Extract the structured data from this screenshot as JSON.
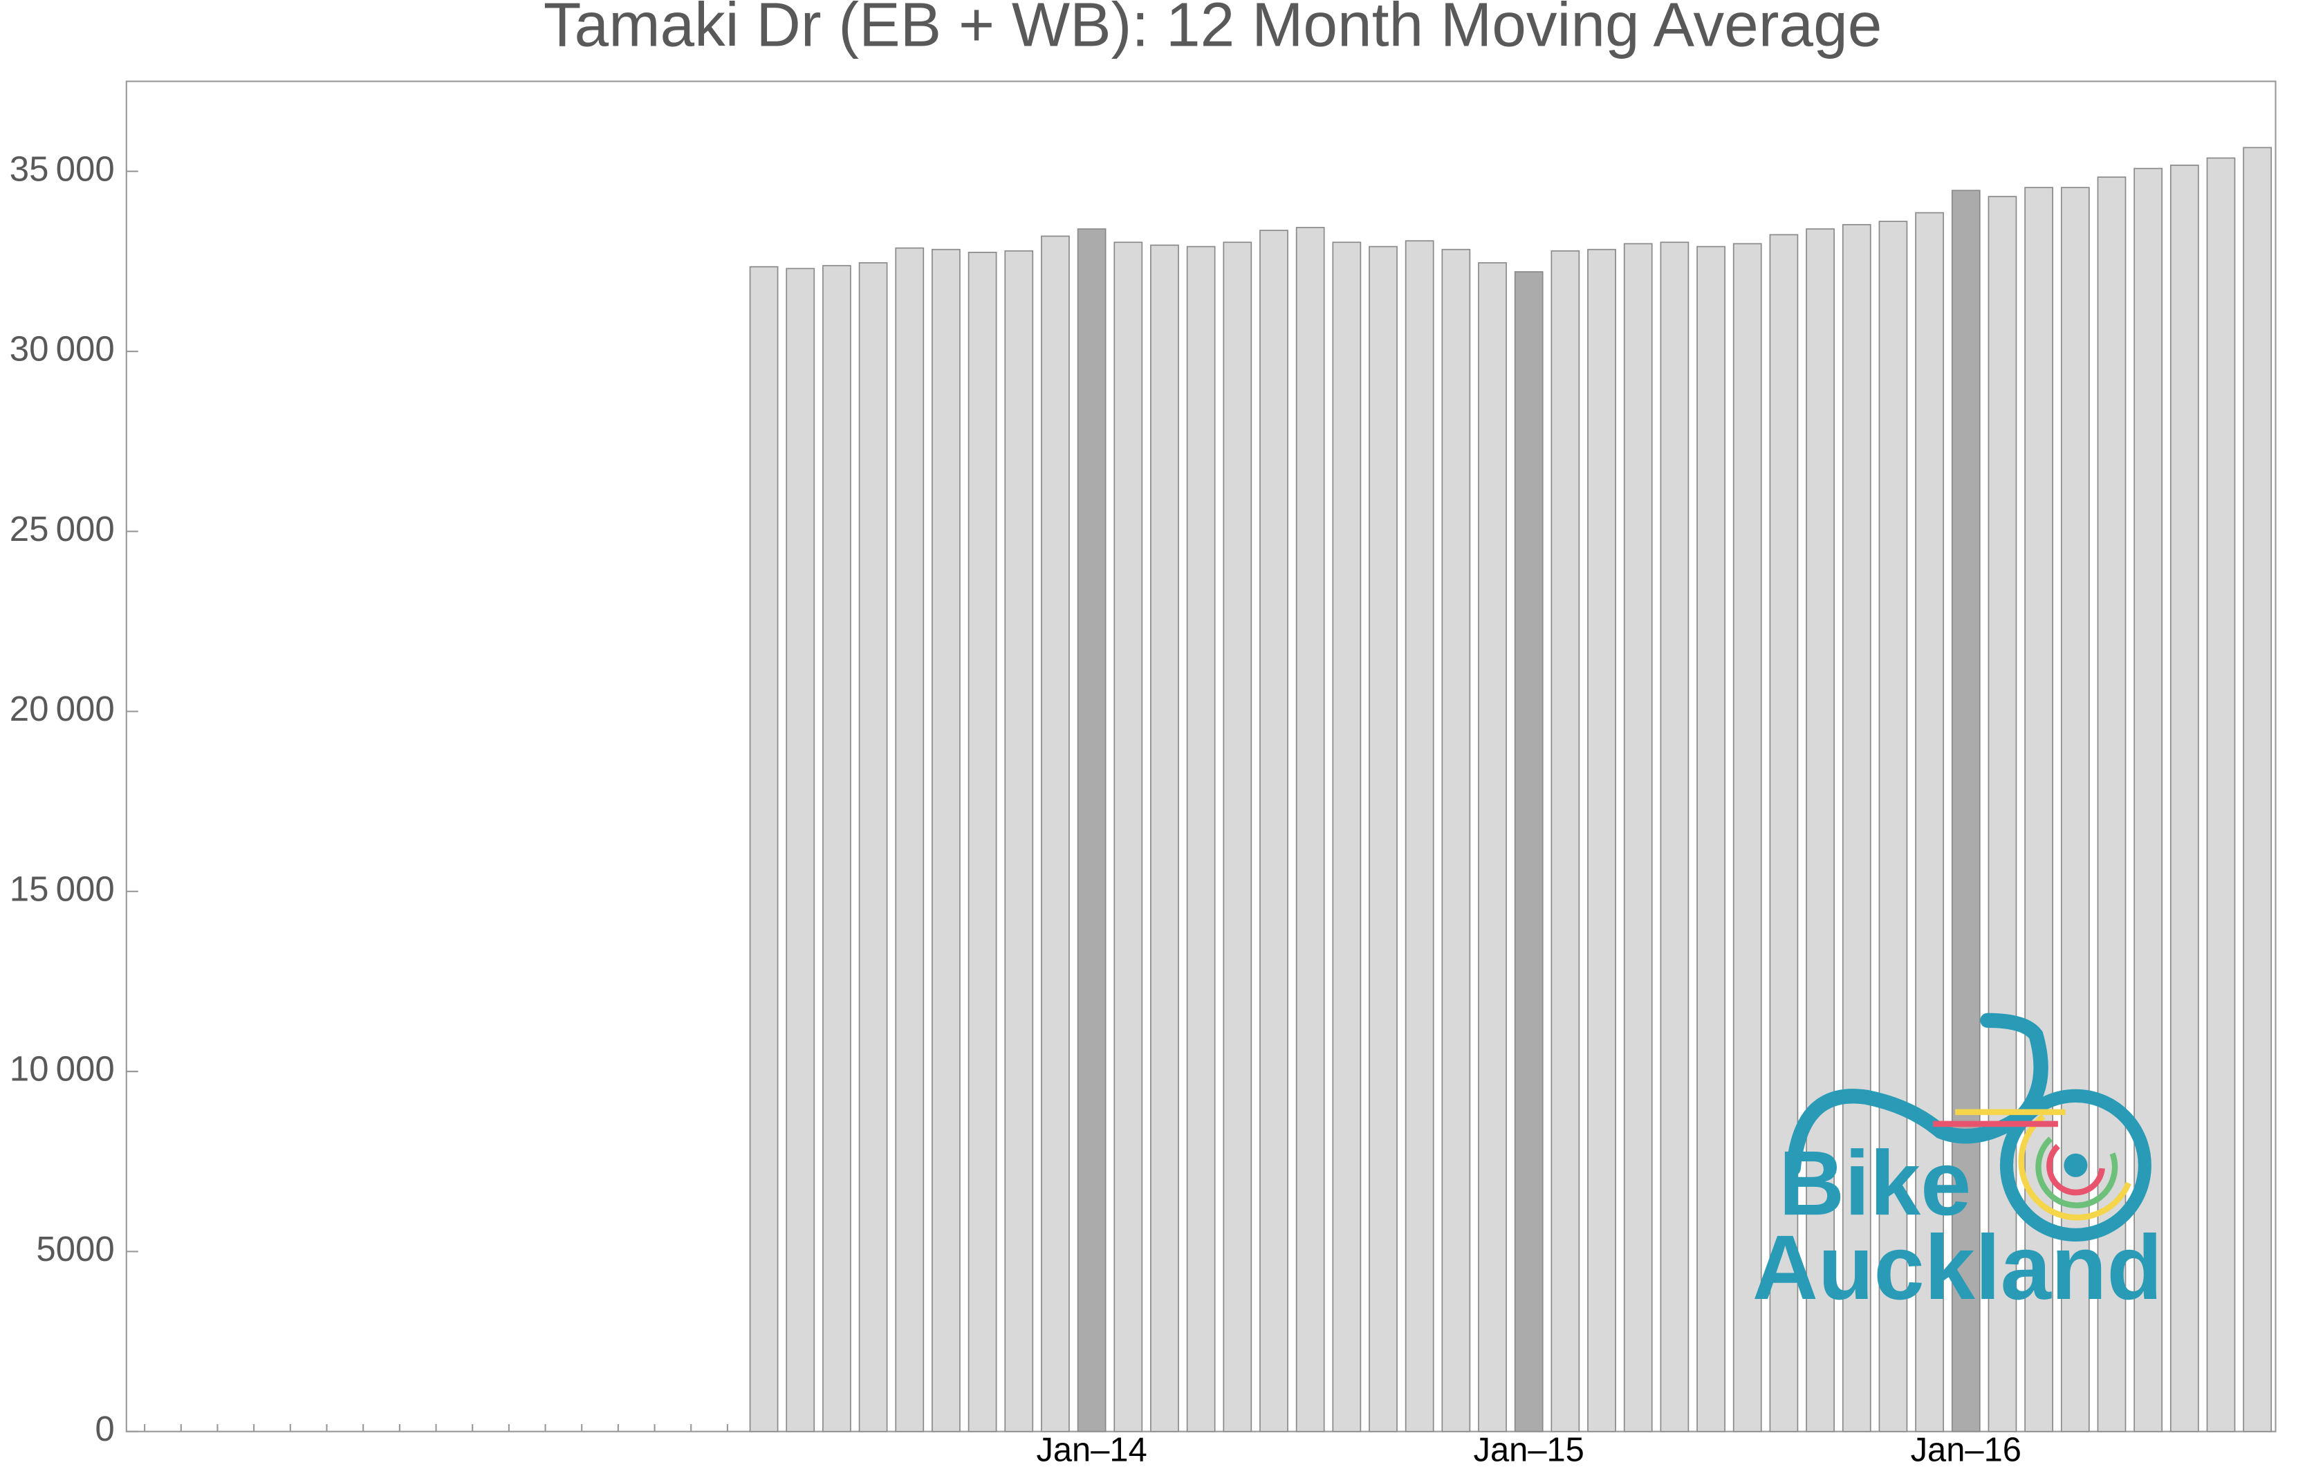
{
  "chart_data": {
    "type": "bar",
    "title": "Tamaki Dr (EB + WB): 12 Month Moving Average",
    "categories": [
      null,
      null,
      null,
      null,
      null,
      null,
      null,
      null,
      null,
      null,
      null,
      null,
      null,
      null,
      null,
      null,
      null,
      null,
      null,
      null,
      null,
      null,
      null,
      null,
      null,
      null,
      "Jan–14",
      null,
      null,
      null,
      null,
      null,
      null,
      null,
      null,
      null,
      null,
      null,
      "Jan–15",
      null,
      null,
      null,
      null,
      null,
      null,
      null,
      null,
      null,
      null,
      null,
      "Jan–16",
      null,
      null,
      null,
      null,
      null,
      null,
      null,
      null
    ],
    "values": [
      null,
      null,
      null,
      null,
      null,
      null,
      null,
      null,
      null,
      null,
      null,
      null,
      null,
      null,
      null,
      null,
      null,
      32350,
      32300,
      32380,
      32460,
      32870,
      32830,
      32750,
      32790,
      33200,
      33400,
      33030,
      32950,
      32910,
      33030,
      33360,
      33440,
      33030,
      32910,
      33070,
      32830,
      32460,
      32210,
      32790,
      32830,
      32990,
      33030,
      32910,
      32990,
      33240,
      33400,
      33520,
      33610,
      33850,
      34470,
      34300,
      34550,
      34550,
      34840,
      35080,
      35170,
      35370,
      35660
    ],
    "colors": [
      null,
      null,
      null,
      null,
      null,
      null,
      null,
      null,
      null,
      null,
      null,
      null,
      null,
      null,
      null,
      null,
      null,
      "#d9d9d9",
      "#d9d9d9",
      "#d9d9d9",
      "#d9d9d9",
      "#d9d9d9",
      "#d9d9d9",
      "#d9d9d9",
      "#d9d9d9",
      "#d9d9d9",
      "#ababab",
      "#d9d9d9",
      "#d9d9d9",
      "#d9d9d9",
      "#d9d9d9",
      "#d9d9d9",
      "#d9d9d9",
      "#d9d9d9",
      "#d9d9d9",
      "#d9d9d9",
      "#d9d9d9",
      "#d9d9d9",
      "#ababab",
      "#d9d9d9",
      "#d9d9d9",
      "#d9d9d9",
      "#d9d9d9",
      "#d9d9d9",
      "#d9d9d9",
      "#d9d9d9",
      "#d9d9d9",
      "#d9d9d9",
      "#d9d9d9",
      "#d9d9d9",
      "#ababab",
      "#d9d9d9",
      "#d9d9d9",
      "#d9d9d9",
      "#d9d9d9",
      "#d9d9d9",
      "#d9d9d9",
      "#d9d9d9",
      "#d9d9d9"
    ],
    "ylim": [
      0,
      37500
    ],
    "yticks": [
      0,
      5000,
      {
        "value": 10000,
        "label": "10 000"
      },
      {
        "value": 15000,
        "label": "15 000"
      },
      {
        "value": 20000,
        "label": "20 000"
      },
      {
        "value": 25000,
        "label": "25 000"
      },
      {
        "value": 30000,
        "label": "30 000"
      },
      {
        "value": 35000,
        "label": "35 000"
      }
    ],
    "grid": false
  },
  "logo": {
    "line1": "Bike",
    "line2": "Auckland"
  }
}
